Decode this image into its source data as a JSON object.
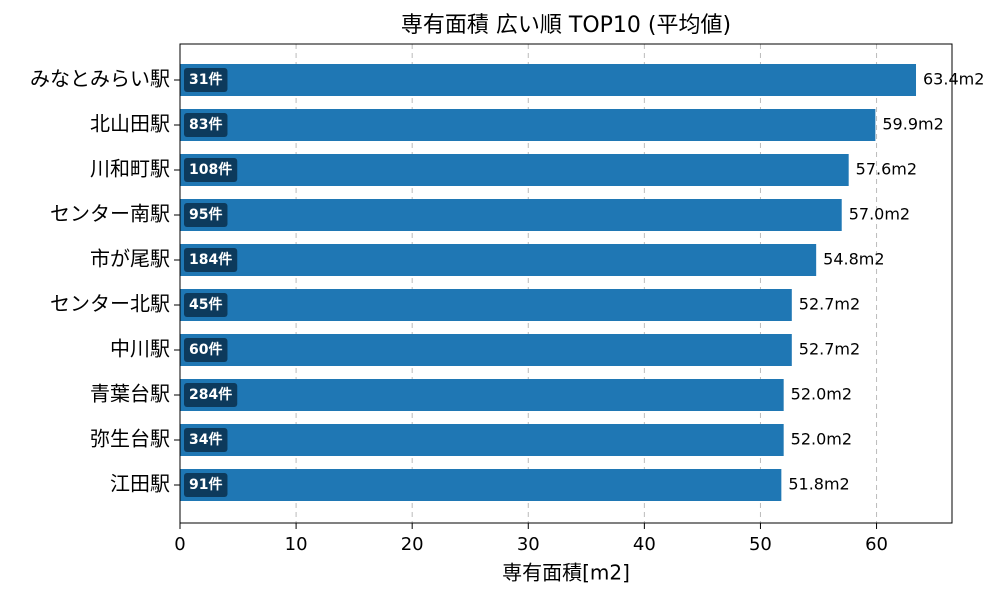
{
  "chart_data": {
    "type": "barh",
    "title": "専有面積 広い順 TOP10 (平均値)",
    "xlabel": "専有面積[m2]",
    "categories": [
      "みなとみらい駅",
      "北山田駅",
      "川和町駅",
      "センター南駅",
      "市が尾駅",
      "センター北駅",
      "中川駅",
      "青葉台駅",
      "弥生台駅",
      "江田駅"
    ],
    "values": [
      63.4,
      59.9,
      57.6,
      57.0,
      54.8,
      52.7,
      52.7,
      52.0,
      52.0,
      51.8
    ],
    "value_labels": [
      "63.4m2",
      "59.9m2",
      "57.6m2",
      "57.0m2",
      "54.8m2",
      "52.7m2",
      "52.7m2",
      "52.0m2",
      "52.0m2",
      "51.8m2"
    ],
    "count_labels": [
      "31件",
      "83件",
      "108件",
      "95件",
      "184件",
      "45件",
      "60件",
      "284件",
      "34件",
      "91件"
    ],
    "color": "#1f77b4",
    "count_label_color": "#0d3a5c",
    "xlim": [
      0,
      66.5
    ],
    "xticks": [
      0,
      10,
      20,
      30,
      40,
      50,
      60
    ],
    "grid": true
  }
}
